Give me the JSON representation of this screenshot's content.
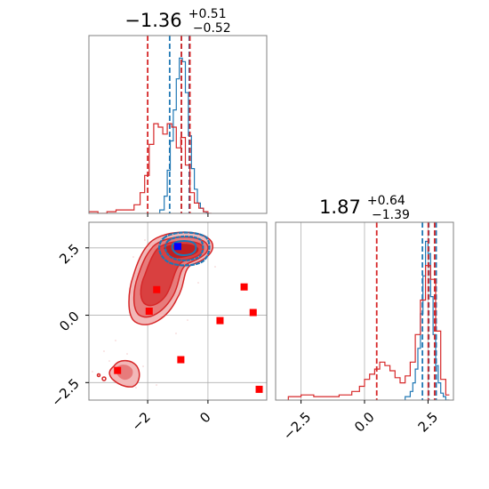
{
  "chart_data": [
    {
      "type": "histogram",
      "panel": "top-left",
      "title": {
        "main": "−1.36",
        "sup": "+0.51",
        "sub": "−0.52"
      },
      "xlim": [
        -3.95,
        1.95
      ],
      "series": [
        {
          "name": "",
          "color": "#1f77b4",
          "bins_x": [
            -1.6,
            -1.45,
            -1.35,
            -1.25,
            -1.15,
            -1.05,
            -0.95,
            -0.85,
            -0.75,
            -0.65,
            -0.55,
            -0.45,
            -0.35,
            -0.25,
            -0.15,
            -0.05
          ],
          "heights": [
            0.02,
            0.1,
            0.25,
            0.42,
            0.6,
            0.78,
            0.9,
            0.88,
            0.7,
            0.45,
            0.26,
            0.14,
            0.06,
            0.03,
            0.01,
            0.0
          ],
          "quantiles": [
            -1.27,
            -0.88,
            -0.62
          ]
        },
        {
          "name": "",
          "color": "#d62728",
          "bins_x": [
            -3.95,
            -3.65,
            -3.35,
            -3.05,
            -2.75,
            -2.45,
            -2.25,
            -2.1,
            -1.95,
            -1.8,
            -1.65,
            -1.5,
            -1.35,
            -1.2,
            -1.05,
            -0.9,
            -0.75,
            -0.6,
            -0.45,
            -0.3,
            -0.15,
            0.0
          ],
          "heights": [
            0.01,
            0.0,
            0.01,
            0.02,
            0.02,
            0.05,
            0.12,
            0.22,
            0.4,
            0.52,
            0.5,
            0.46,
            0.52,
            0.5,
            0.38,
            0.44,
            0.28,
            0.12,
            0.06,
            0.03,
            0.01,
            0.0
          ],
          "quantiles": [
            -2.0,
            -0.88,
            -0.6
          ]
        }
      ]
    },
    {
      "type": "contour-scatter",
      "panel": "bottom-left",
      "xlim": [
        -3.95,
        1.95
      ],
      "ylim": [
        -3.15,
        3.45
      ],
      "xticks": [
        "−2",
        "0"
      ],
      "xtick_values": [
        -2,
        0
      ],
      "yticks": [
        "−2.5",
        "0.0",
        "2.5"
      ],
      "ytick_values": [
        -2.5,
        0.0,
        2.5
      ],
      "grid": true,
      "markers": {
        "color": "#ff0000",
        "points": [
          {
            "x": -1.7,
            "y": 0.95
          },
          {
            "x": -1.95,
            "y": 0.15
          },
          {
            "x": -3.0,
            "y": -2.05
          },
          {
            "x": -0.9,
            "y": -1.65
          },
          {
            "x": 0.4,
            "y": -0.2
          },
          {
            "x": 1.2,
            "y": 1.05
          },
          {
            "x": 1.5,
            "y": 0.1
          },
          {
            "x": 1.7,
            "y": -2.75
          }
        ],
        "highlight": {
          "x": -1.0,
          "y": 2.55,
          "color": "#0000ff"
        }
      }
    },
    {
      "type": "histogram",
      "panel": "bottom-right",
      "title": {
        "main": "1.87",
        "sup": "+0.64",
        "sub": "−1.39"
      },
      "xlim": [
        -3.5,
        3.5
      ],
      "xticks": [
        "−2.5",
        "0.0",
        "2.5"
      ],
      "xtick_values": [
        -2.5,
        0.0,
        2.5
      ],
      "grid": true,
      "series": [
        {
          "name": "",
          "color": "#1f77b4",
          "bins_x": [
            1.6,
            1.8,
            1.9,
            2.0,
            2.1,
            2.2,
            2.3,
            2.4,
            2.5,
            2.6,
            2.7,
            2.8,
            2.9,
            3.0,
            3.1,
            3.2
          ],
          "heights": [
            0.02,
            0.05,
            0.1,
            0.18,
            0.3,
            0.5,
            0.72,
            0.92,
            0.85,
            0.6,
            0.38,
            0.2,
            0.1,
            0.04,
            0.02,
            0.0
          ],
          "quantiles": [
            2.28,
            2.53,
            2.82
          ]
        },
        {
          "name": "",
          "color": "#d62728",
          "bins_x": [
            -3.0,
            -2.5,
            -2.0,
            -1.5,
            -1.0,
            -0.5,
            -0.2,
            0.0,
            0.2,
            0.4,
            0.6,
            0.8,
            1.0,
            1.2,
            1.4,
            1.6,
            1.8,
            2.0,
            2.2,
            2.4,
            2.6,
            2.8,
            3.0,
            3.2
          ],
          "heights": [
            0.02,
            0.03,
            0.02,
            0.02,
            0.03,
            0.05,
            0.08,
            0.12,
            0.15,
            0.18,
            0.22,
            0.2,
            0.17,
            0.13,
            0.1,
            0.14,
            0.22,
            0.38,
            0.58,
            0.78,
            0.7,
            0.4,
            0.12,
            0.03
          ],
          "quantiles": [
            0.48,
            2.51,
            2.76
          ]
        }
      ]
    }
  ]
}
